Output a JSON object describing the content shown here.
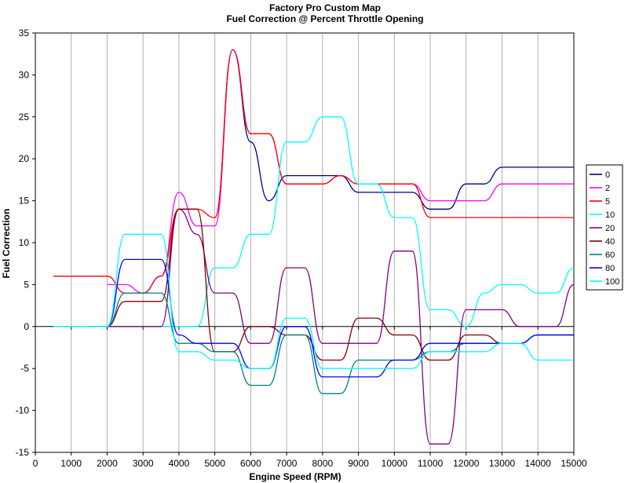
{
  "chart_data": {
    "type": "line",
    "title": "Factory Pro Custom Map",
    "subtitle": "Fuel Correction @ Percent Throttle Opening",
    "xlabel": "Engine Speed (RPM)",
    "ylabel": "Fuel Correction",
    "xlim": [
      0,
      15000
    ],
    "ylim": [
      -15,
      35
    ],
    "xticks": [
      "0",
      "1000",
      "2000",
      "3000",
      "4000",
      "5000",
      "6000",
      "7000",
      "8000",
      "9000",
      "10000",
      "11000",
      "12000",
      "13000",
      "14000",
      "15000"
    ],
    "yticks": [
      "-15",
      "-10",
      "-5",
      "0",
      "5",
      "10",
      "15",
      "20",
      "25",
      "30",
      "35"
    ],
    "grid": "vertical",
    "legend_position": "right",
    "series": [
      {
        "name": "0",
        "color": "#000080",
        "x": [
          5000,
          5500,
          6000,
          6500,
          7000,
          7500,
          8000,
          8500,
          9000,
          9500,
          10000,
          10500,
          11000,
          11500,
          12000,
          12500,
          13000,
          13500,
          14000,
          14500,
          15000
        ],
        "y": [
          13,
          33,
          22,
          15,
          18,
          18,
          18,
          18,
          16,
          16,
          16,
          16,
          14,
          14,
          17,
          17,
          19,
          19,
          19,
          19,
          19
        ]
      },
      {
        "name": "2",
        "color": "#ff00ff",
        "x": [
          2000,
          2500,
          3000,
          3500,
          4000,
          4500,
          5000,
          5500,
          6000,
          6500,
          7000,
          7500,
          8000,
          8500,
          9000,
          9500,
          10000,
          10500,
          11000,
          11500,
          12000,
          12500,
          13000,
          13500,
          14000,
          14500,
          15000
        ],
        "y": [
          5,
          5,
          4,
          6,
          16,
          12,
          12,
          33,
          23,
          23,
          17,
          17,
          17,
          18,
          17,
          17,
          17,
          17,
          15,
          15,
          15,
          15,
          17,
          17,
          17,
          17,
          17
        ]
      },
      {
        "name": "5",
        "color": "#ff0000",
        "x": [
          500,
          1000,
          1500,
          2000,
          2500,
          3000,
          3500,
          4000,
          4500,
          5000,
          5500,
          6000,
          6500,
          7000,
          7500,
          8000,
          8500,
          9000,
          9500,
          10000,
          10500,
          11000,
          11500,
          12000,
          12500,
          13000,
          13500,
          14000,
          14500,
          15000
        ],
        "y": [
          6,
          6,
          6,
          6,
          4,
          4,
          6,
          14,
          14,
          13,
          33,
          23,
          23,
          17,
          17,
          17,
          18,
          17,
          17,
          17,
          17,
          13,
          13,
          13,
          13,
          13,
          13,
          13,
          13,
          13
        ]
      },
      {
        "name": "10",
        "color": "#00ffff",
        "x": [
          500,
          1000,
          1500,
          2000,
          2500,
          3000,
          3500,
          4000,
          4500,
          5000,
          5500,
          6000,
          6500,
          7000,
          7500,
          8000,
          8500,
          9000,
          9500,
          10000,
          10500,
          11000,
          11500,
          12000,
          12500,
          13000,
          13500,
          14000,
          14500,
          15000
        ],
        "y": [
          0,
          0,
          0,
          0,
          0,
          0,
          0,
          0,
          0,
          7,
          7,
          11,
          11,
          22,
          22,
          25,
          25,
          17,
          17,
          13,
          13,
          2,
          2,
          0,
          4,
          5,
          5,
          4,
          4,
          7
        ]
      },
      {
        "name": "20",
        "color": "#800080",
        "x": [
          1500,
          2000,
          2500,
          3000,
          3500,
          4000,
          4500,
          5000,
          5500,
          6000,
          6500,
          7000,
          7500,
          8000,
          8500,
          9000,
          9500,
          10000,
          10500,
          11000,
          11500,
          12000,
          12500,
          13000,
          13500,
          14000,
          14500,
          15000
        ],
        "y": [
          0,
          0,
          0,
          0,
          0,
          14,
          11,
          4,
          4,
          -2,
          -2,
          7,
          7,
          -2,
          -2,
          -2,
          -2,
          9,
          9,
          -14,
          -14,
          2,
          2,
          2,
          0,
          0,
          0,
          5
        ]
      },
      {
        "name": "40",
        "color": "#800000",
        "x": [
          1500,
          2000,
          2500,
          3000,
          3500,
          4000,
          4500,
          5000,
          5500,
          6000,
          6500,
          7000,
          7500,
          8000,
          8500,
          9000,
          9500,
          10000,
          10500,
          11000,
          11500,
          12000,
          12500,
          13000,
          13500,
          14000,
          14500,
          15000
        ],
        "y": [
          0,
          0,
          3,
          3,
          3,
          14,
          14,
          -3,
          -3,
          0,
          0,
          -1,
          -1,
          -4,
          -4,
          1,
          1,
          -1,
          -1,
          -4,
          -4,
          -1,
          -1,
          -2,
          -2,
          -1,
          -1,
          -1
        ]
      },
      {
        "name": "60",
        "color": "#008080",
        "x": [
          1500,
          2000,
          2500,
          3000,
          3500,
          4000,
          4500,
          5000,
          5500,
          6000,
          6500,
          7000,
          7500,
          8000,
          8500,
          9000,
          9500,
          10000,
          10500,
          11000,
          11500,
          12000,
          12500,
          13000,
          13500,
          14000,
          14500,
          15000
        ],
        "y": [
          0,
          0,
          4,
          4,
          4,
          -2,
          -2,
          -3,
          -3,
          -7,
          -7,
          -1,
          -1,
          -8,
          -8,
          -4,
          -4,
          -4,
          -4,
          -3,
          -3,
          -2,
          -2,
          -2,
          -2,
          -1,
          -1,
          -1
        ]
      },
      {
        "name": "80",
        "color": "#0000ff",
        "x": [
          1500,
          2000,
          2500,
          3000,
          3500,
          4000,
          4500,
          5000,
          5500,
          6000,
          6500,
          7000,
          7500,
          8000,
          8500,
          9000,
          9500,
          10000,
          10500,
          11000,
          11500,
          12000,
          12500,
          13000,
          13500,
          14000,
          14500,
          15000
        ],
        "y": [
          0,
          0,
          8,
          8,
          8,
          -1,
          -2,
          -2,
          -2,
          -5,
          -5,
          0,
          0,
          -6,
          -6,
          -6,
          -6,
          -4,
          -4,
          -2,
          -2,
          -2,
          -2,
          -2,
          -2,
          -1,
          -1,
          -1
        ]
      },
      {
        "name": "100",
        "color": "#00ffff",
        "x": [
          1500,
          2000,
          2500,
          3000,
          3500,
          4000,
          4500,
          5000,
          5500,
          6000,
          6500,
          7000,
          7500,
          8000,
          8500,
          9000,
          9500,
          10000,
          10500,
          11000,
          11500,
          12000,
          12500,
          13000,
          13500,
          14000,
          14500,
          15000
        ],
        "y": [
          0,
          0,
          11,
          11,
          11,
          -3,
          -3,
          -4,
          -4,
          -5,
          -5,
          1,
          1,
          -5,
          -5,
          -5,
          -5,
          -5,
          -5,
          -3,
          -3,
          -3,
          -3,
          -2,
          -2,
          -4,
          -4,
          -4
        ]
      }
    ]
  }
}
